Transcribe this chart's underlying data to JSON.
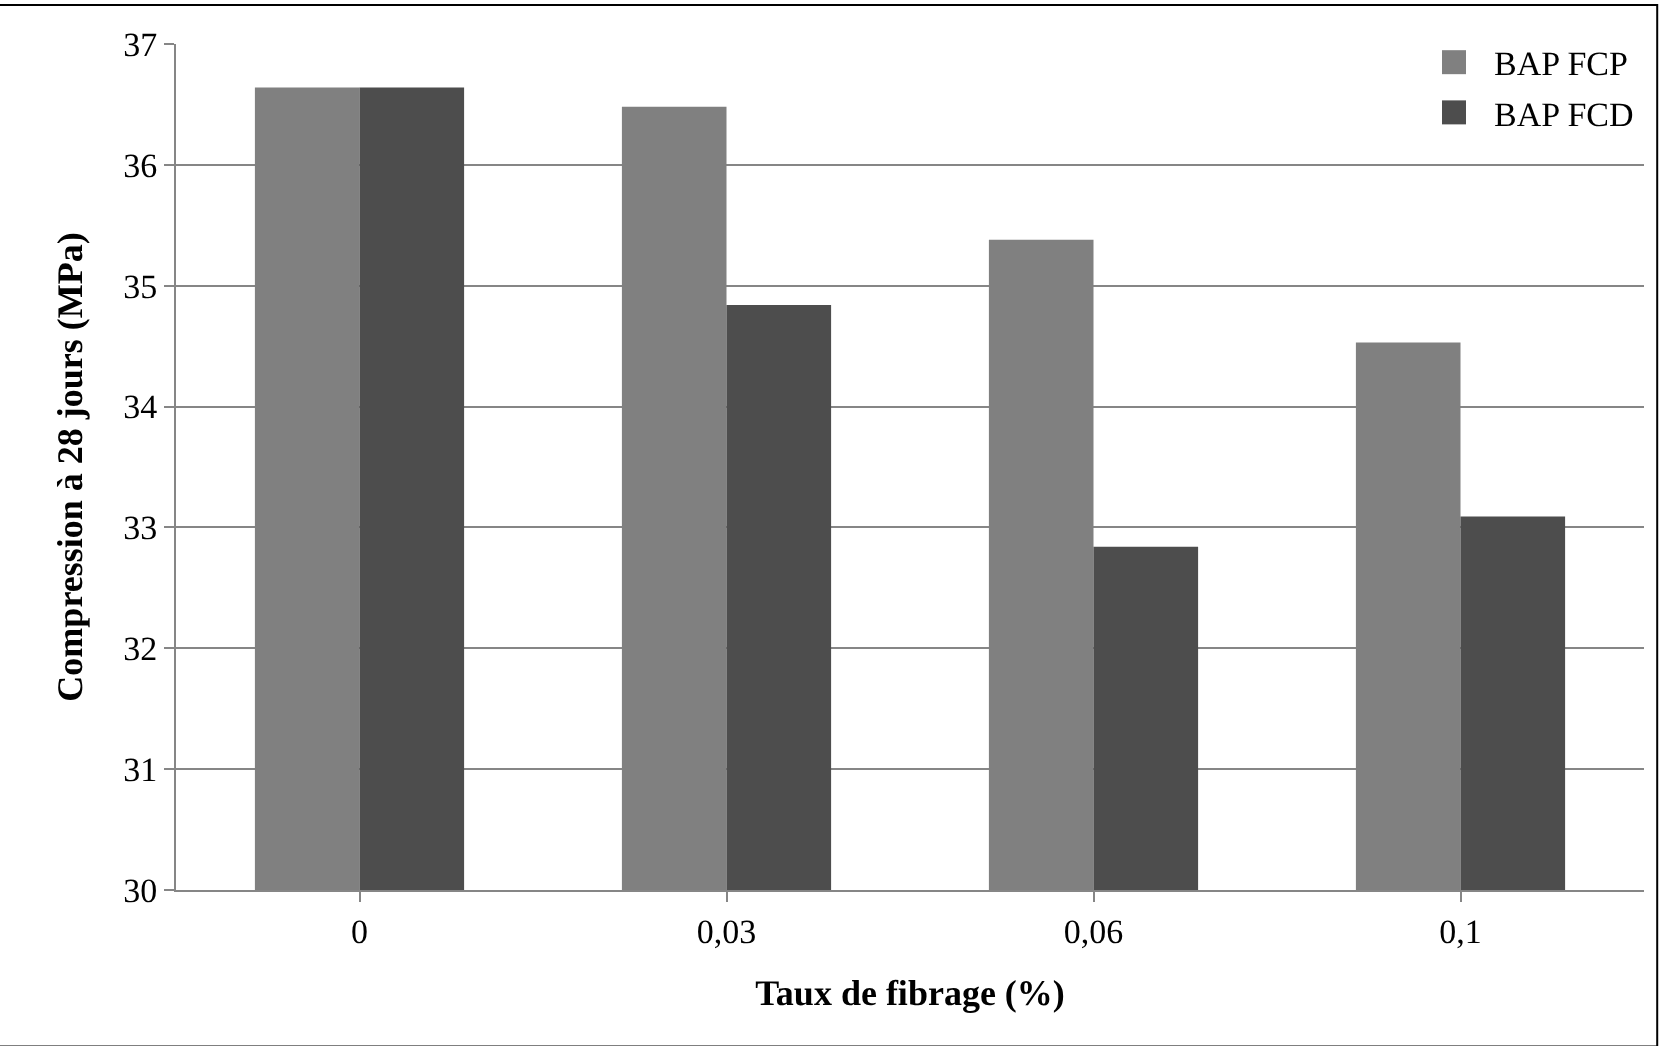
{
  "chart_data": {
    "type": "bar",
    "xlabel": "Taux de fibrage (%)",
    "ylabel": "Compression à 28 jours (MPa)",
    "categories": [
      "0",
      "0,03",
      "0,06",
      "0,1"
    ],
    "series": [
      {
        "name": "BAP FCP",
        "color": "#808080",
        "values": [
          36.64,
          36.48,
          35.38,
          34.53
        ]
      },
      {
        "name": "BAP FCD",
        "color": "#4d4d4d",
        "values": [
          36.64,
          34.84,
          32.84,
          33.09
        ]
      }
    ],
    "ylim": [
      30,
      37
    ],
    "yticks": [
      30,
      31,
      32,
      33,
      34,
      35,
      36,
      37
    ],
    "grid": "y",
    "legend": "top right"
  }
}
